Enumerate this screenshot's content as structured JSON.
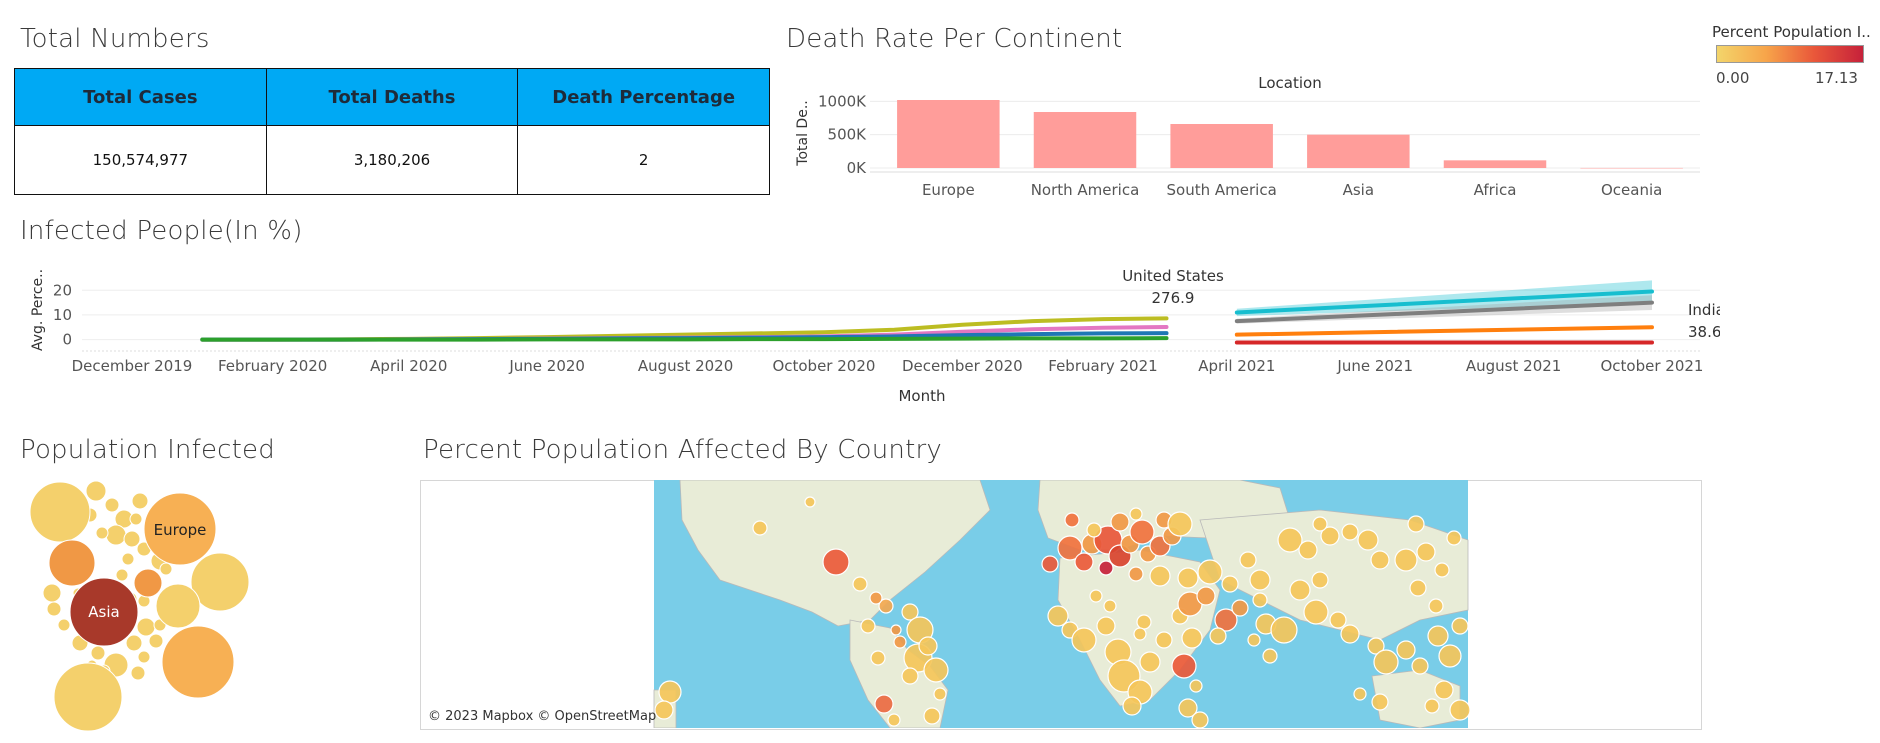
{
  "titles": {
    "total_numbers": "Total Numbers",
    "death_rate": "Death Rate Per Continent",
    "infected_people": "Infected People(In %)",
    "population_infected": "Population Infected",
    "percent_by_country": "Percent Population Affected By Country"
  },
  "kpi": {
    "headers": [
      "Total Cases",
      "Total Deaths",
      "Death Percentage"
    ],
    "values": [
      "150,574,977",
      "3,180,206",
      "2"
    ]
  },
  "legend": {
    "title": "Percent Population I..",
    "min": "0.00",
    "max": "17.13",
    "colors": [
      "#f3d56b",
      "#f7a54a",
      "#e9573a",
      "#c6213a"
    ]
  },
  "chart_data": [
    {
      "type": "bar",
      "title": "Death Rate Per Continent",
      "xlabel": "Location",
      "ylabel": "Total De..",
      "categories": [
        "Europe",
        "North America",
        "South America",
        "Asia",
        "Africa",
        "Oceania"
      ],
      "values": [
        1020000,
        840000,
        660000,
        500000,
        115000,
        1000
      ],
      "ylim": [
        0,
        1050000
      ],
      "yticks": [
        "0K",
        "500K",
        "1000K"
      ],
      "color": "#ff9d9a"
    },
    {
      "type": "line",
      "title": "Infected People(In %)",
      "xlabel": "Month",
      "ylabel": "Avg. Perce..",
      "yticks": [
        "0",
        "10",
        "20"
      ],
      "ylim": [
        -3,
        27
      ],
      "x_ticks": [
        "December 2019",
        "February 2020",
        "April 2020",
        "June 2020",
        "August 2020",
        "October 2020",
        "December 2020",
        "February 2021",
        "April 2021",
        "June 2021",
        "August 2021",
        "October 2021"
      ],
      "segment1_months": [
        "January 2020",
        "February 2020",
        "March 2020",
        "April 2020",
        "May 2020",
        "June 2020",
        "July 2020",
        "August 2020",
        "September 2020",
        "October 2020",
        "November 2020",
        "December 2020",
        "January 2021",
        "February 2021",
        "March 2021"
      ],
      "segment2_months": [
        "April 2021",
        "October 2021"
      ],
      "series": [
        {
          "color": "#bcbd22",
          "segment1": [
            0,
            0,
            0.1,
            0.3,
            0.6,
            1.0,
            1.5,
            2.0,
            2.5,
            3.0,
            4.0,
            6.0,
            7.5,
            8.3,
            8.6
          ]
        },
        {
          "color": "#e377c2",
          "segment1": [
            0,
            0,
            0,
            0.1,
            0.2,
            0.4,
            0.6,
            0.8,
            1.0,
            1.3,
            2.0,
            3.2,
            4.2,
            4.8,
            5.1
          ]
        },
        {
          "color": "#1f77b4",
          "segment1": [
            0,
            0,
            0,
            0.1,
            0.2,
            0.3,
            0.5,
            0.6,
            0.8,
            1.0,
            1.3,
            1.8,
            2.2,
            2.5,
            2.6
          ]
        },
        {
          "color": "#2ca02c",
          "segment1": [
            0,
            0,
            0,
            0,
            0,
            0.1,
            0.1,
            0.1,
            0.2,
            0.2,
            0.3,
            0.4,
            0.5,
            0.5,
            0.6
          ]
        },
        {
          "color": "#17becf",
          "segment2": [
            11.0,
            19.5
          ]
        },
        {
          "color": "#7f7f7f",
          "segment2": [
            7.5,
            15.0
          ]
        },
        {
          "color": "#ff7f0e",
          "segment2": [
            2.0,
            5.0
          ]
        },
        {
          "color": "#d62728",
          "segment2": [
            -1.2,
            -1.2
          ]
        }
      ],
      "annotations": [
        {
          "label": "United States",
          "value": "276.9"
        },
        {
          "label": "India",
          "value": "38.6"
        }
      ]
    }
  ],
  "bubbles": {
    "labels": [
      "Europe",
      "Asia"
    ]
  },
  "map": {
    "attribution": "© 2023 Mapbox © OpenStreetMap",
    "ocean_color": "#79cde8",
    "land_color": "#e8ecd7"
  }
}
